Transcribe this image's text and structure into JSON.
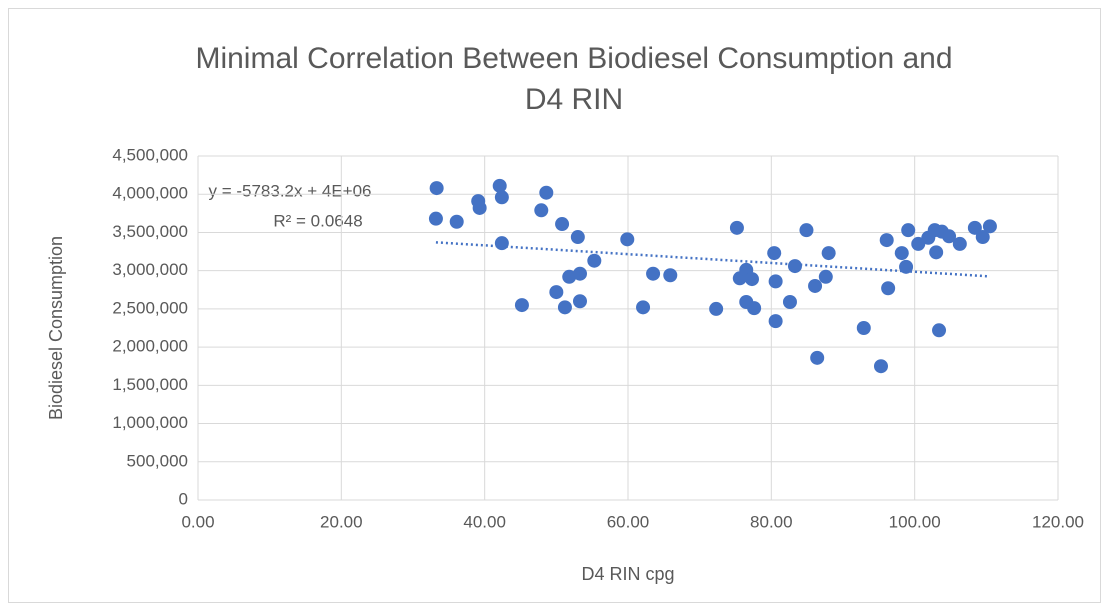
{
  "chart_data": {
    "type": "scatter",
    "title": [
      "Minimal Correlation Between Biodiesel Consumption and",
      "D4 RIN"
    ],
    "x_label": "D4 RIN cpg",
    "y_label": "Biodiesel Consumption",
    "annotations": [
      "y = -5783.2x + 4E+06",
      "R² = 0.0648"
    ],
    "trendline": true,
    "color": "#4472c4",
    "grid": true,
    "xlim": [
      0,
      120
    ],
    "xticks": [
      {
        "value": 0,
        "label": "0.00"
      },
      {
        "value": 20,
        "label": "20.00"
      },
      {
        "value": 40,
        "label": "40.00"
      },
      {
        "value": 60,
        "label": "60.00"
      },
      {
        "value": 80,
        "label": "80.00"
      },
      {
        "value": 100,
        "label": "100.00"
      },
      {
        "value": 120,
        "label": "120.00"
      }
    ],
    "ylim": [
      0,
      4500000
    ],
    "yticks": [
      0,
      {
        "value": 500000,
        "label": "500,000"
      },
      {
        "value": 1000000,
        "label": "1,000,000"
      },
      {
        "value": 1500000,
        "label": "1,500,000"
      },
      {
        "value": 2000000,
        "label": "2,000,000"
      },
      {
        "value": 2500000,
        "label": "2,500,000"
      },
      {
        "value": 3000000,
        "label": "3,000,000"
      },
      {
        "value": 3500000,
        "label": "3,500,000"
      },
      {
        "value": 4000000,
        "label": "4,000,000"
      },
      {
        "value": 4500000,
        "label": "4,500,000"
      }
    ],
    "x": [
      33.3,
      33.2,
      36.1,
      39.1,
      39.3,
      42.1,
      42.4,
      42.4,
      45.2,
      47.9,
      48.6,
      50.0,
      50.8,
      51.2,
      51.8,
      53.0,
      53.3,
      53.3,
      55.3,
      59.9,
      62.1,
      63.5,
      65.9,
      72.3,
      75.2,
      75.6,
      76.5,
      76.5,
      77.3,
      77.6,
      80.4,
      80.6,
      80.6,
      82.6,
      83.3,
      84.9,
      86.1,
      86.4,
      87.6,
      88.0,
      92.9,
      95.3,
      96.1,
      96.3,
      98.2,
      98.8,
      99.1,
      100.5,
      101.9,
      102.8,
      103.0,
      103.4,
      103.8,
      104.8,
      106.3,
      108.4,
      109.5,
      110.5
    ],
    "values": [
      4080000,
      3680000,
      3640000,
      3910000,
      3820000,
      4110000,
      3960000,
      3360000,
      2550000,
      3790000,
      4020000,
      2720000,
      3610000,
      2520000,
      2920000,
      3440000,
      2960000,
      2600000,
      3130000,
      3410000,
      2520000,
      2960000,
      2940000,
      2500000,
      3560000,
      2900000,
      3010000,
      2590000,
      2890000,
      2510000,
      3230000,
      2860000,
      2340000,
      2590000,
      3060000,
      3530000,
      2800000,
      1860000,
      2920000,
      3230000,
      2250000,
      1750000,
      3400000,
      2770000,
      3230000,
      3050000,
      3530000,
      3350000,
      3430000,
      3530000,
      3240000,
      2220000,
      3510000,
      3450000,
      3350000,
      3560000,
      3440000,
      3580000
    ]
  }
}
